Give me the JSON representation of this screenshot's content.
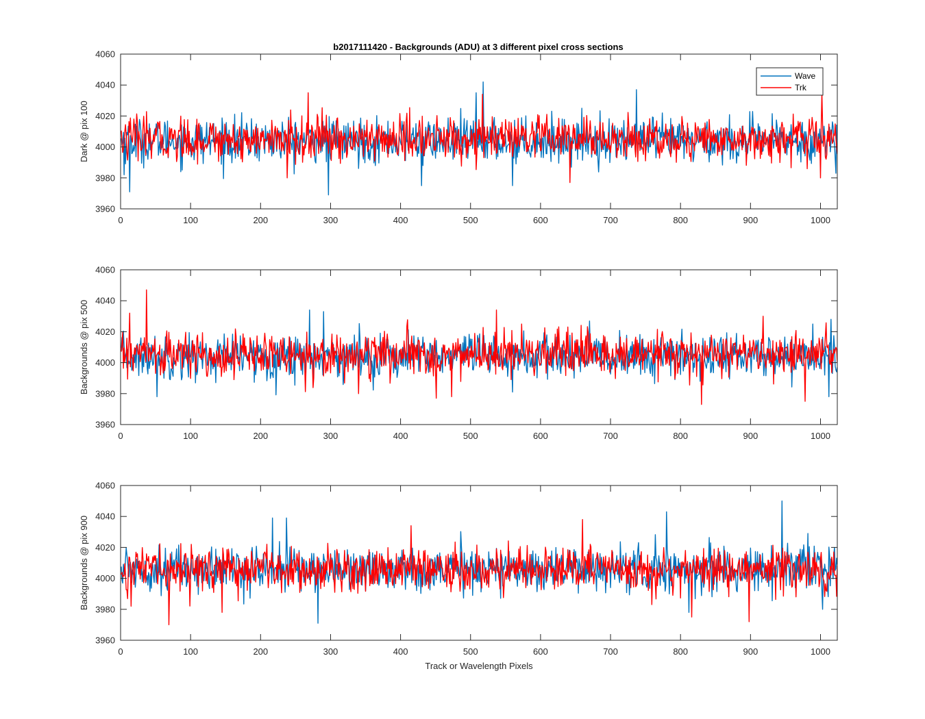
{
  "figure": {
    "title": "b2017111420 - Backgrounds (ADU) at 3 different pixel cross sections"
  },
  "chart_data": [
    {
      "type": "line",
      "title": "b2017111420 - Backgrounds (ADU) at 3 different pixel cross sections",
      "xlabel": "",
      "ylabel": "Dark @ pix 100",
      "xlim": [
        0,
        1024
      ],
      "ylim": [
        3960,
        4060
      ],
      "xticks": [
        "0",
        "100",
        "200",
        "300",
        "400",
        "500",
        "600",
        "700",
        "800",
        "900",
        "1000"
      ],
      "yticks": [
        "3960",
        "3980",
        "4000",
        "4020",
        "4040",
        "4060"
      ],
      "grid": false,
      "legend": {
        "placement": "top-right",
        "entries": [
          "Wave",
          "Trk"
        ]
      },
      "series": [
        {
          "name": "Wave",
          "color": "#0072BD",
          "mean": 4004,
          "noise_sigma": 7,
          "x_start": 1,
          "x_end": 1024,
          "peaks": [
            {
              "x": 518,
              "y": 4042
            },
            {
              "x": 508,
              "y": 4035
            },
            {
              "x": 737,
              "y": 4037
            },
            {
              "x": 297,
              "y": 3969
            },
            {
              "x": 13,
              "y": 3971
            },
            {
              "x": 430,
              "y": 3975
            },
            {
              "x": 560,
              "y": 3975
            },
            {
              "x": 5,
              "y": 3982
            },
            {
              "x": 1022,
              "y": 3983
            }
          ]
        },
        {
          "name": "Trk",
          "color": "#FF0000",
          "mean": 4005,
          "noise_sigma": 7,
          "x_start": 1,
          "x_end": 1024,
          "peaks": [
            {
              "x": 268,
              "y": 4035
            },
            {
              "x": 517,
              "y": 4034
            },
            {
              "x": 1002,
              "y": 4035
            },
            {
              "x": 642,
              "y": 3977
            },
            {
              "x": 1000,
              "y": 3980
            },
            {
              "x": 238,
              "y": 3980
            }
          ]
        }
      ]
    },
    {
      "type": "line",
      "xlabel": "",
      "ylabel": "Backgrounds @ pix 500",
      "xlim": [
        0,
        1024
      ],
      "ylim": [
        3960,
        4060
      ],
      "xticks": [
        "0",
        "100",
        "200",
        "300",
        "400",
        "500",
        "600",
        "700",
        "800",
        "900",
        "1000"
      ],
      "yticks": [
        "3960",
        "3980",
        "4000",
        "4020",
        "4040",
        "4060"
      ],
      "grid": false,
      "series": [
        {
          "name": "Wave",
          "color": "#0072BD",
          "mean": 4004,
          "noise_sigma": 7,
          "x_start": 1,
          "x_end": 1024,
          "peaks": [
            {
              "x": 270,
              "y": 4034
            },
            {
              "x": 290,
              "y": 4033
            },
            {
              "x": 52,
              "y": 3978
            },
            {
              "x": 1012,
              "y": 3978
            },
            {
              "x": 560,
              "y": 3981
            },
            {
              "x": 1015,
              "y": 4028
            }
          ]
        },
        {
          "name": "Trk",
          "color": "#FF0000",
          "mean": 4005,
          "noise_sigma": 7,
          "x_start": 1,
          "x_end": 1024,
          "peaks": [
            {
              "x": 37,
              "y": 4047
            },
            {
              "x": 13,
              "y": 4032
            },
            {
              "x": 537,
              "y": 4034
            },
            {
              "x": 830,
              "y": 3973
            },
            {
              "x": 978,
              "y": 3975
            },
            {
              "x": 451,
              "y": 3977
            },
            {
              "x": 473,
              "y": 3978
            },
            {
              "x": 340,
              "y": 3980
            },
            {
              "x": 918,
              "y": 4030
            }
          ]
        }
      ]
    },
    {
      "type": "line",
      "xlabel": "Track or Wavelength Pixels",
      "ylabel": "Backgrounds @ pix 900",
      "xlim": [
        0,
        1024
      ],
      "ylim": [
        3960,
        4060
      ],
      "xticks": [
        "0",
        "100",
        "200",
        "300",
        "400",
        "500",
        "600",
        "700",
        "800",
        "900",
        "1000"
      ],
      "yticks": [
        "3960",
        "3980",
        "4000",
        "4020",
        "4040",
        "4060"
      ],
      "grid": false,
      "series": [
        {
          "name": "Wave",
          "color": "#0072BD",
          "mean": 4006,
          "noise_sigma": 7,
          "x_start": 1,
          "x_end": 1024,
          "peaks": [
            {
              "x": 945,
              "y": 4050
            },
            {
              "x": 780,
              "y": 4043
            },
            {
              "x": 217,
              "y": 4039
            },
            {
              "x": 237,
              "y": 4039
            },
            {
              "x": 282,
              "y": 3971
            },
            {
              "x": 812,
              "y": 3978
            },
            {
              "x": 1003,
              "y": 3980
            }
          ]
        },
        {
          "name": "Trk",
          "color": "#FF0000",
          "mean": 4006,
          "noise_sigma": 7,
          "x_start": 1,
          "x_end": 1024,
          "peaks": [
            {
              "x": 69,
              "y": 3970
            },
            {
              "x": 898,
              "y": 3972
            },
            {
              "x": 816,
              "y": 3975
            },
            {
              "x": 415,
              "y": 4034
            },
            {
              "x": 660,
              "y": 4038
            },
            {
              "x": 15,
              "y": 3982
            },
            {
              "x": 145,
              "y": 3978
            }
          ]
        }
      ]
    }
  ]
}
